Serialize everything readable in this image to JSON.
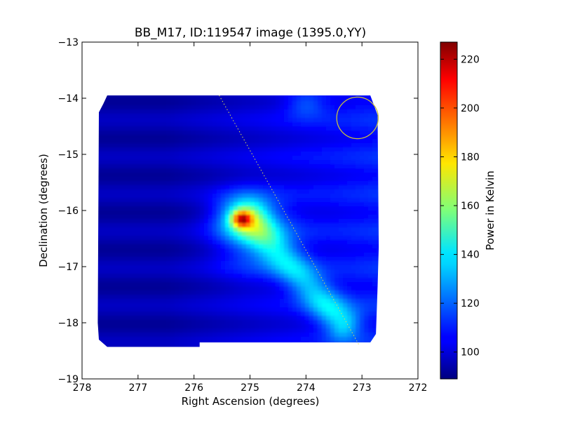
{
  "chart_data": {
    "type": "heatmap",
    "title": "BB_M17, ID:119547 image (1395.0,YY)",
    "xlabel": "Right Ascension (degrees)",
    "ylabel": "Declination (degrees)",
    "xlim": [
      278,
      272
    ],
    "ylim": [
      -19,
      -13
    ],
    "x_ticks": [
      278,
      277,
      276,
      275,
      274,
      273,
      272
    ],
    "y_ticks": [
      -19,
      -18,
      -17,
      -16,
      -15,
      -14,
      -13
    ],
    "x_tick_labels": [
      "278",
      "277",
      "276",
      "275",
      "274",
      "273",
      "272"
    ],
    "y_tick_labels": [
      "−19",
      "−18",
      "−17",
      "−16",
      "−15",
      "−14",
      "−13"
    ],
    "colorbar": {
      "label": "Power in Kelvin",
      "range": [
        89,
        227
      ],
      "ticks": [
        100,
        120,
        140,
        160,
        180,
        200,
        220
      ],
      "colormap": "jet"
    },
    "background_level": 95,
    "coverage_polygon": [
      [
        277.55,
        -13.95
      ],
      [
        272.85,
        -13.95
      ],
      [
        272.72,
        -14.3
      ],
      [
        272.7,
        -16.65
      ],
      [
        272.72,
        -17.35
      ],
      [
        272.75,
        -18.2
      ],
      [
        272.85,
        -18.35
      ],
      [
        275.9,
        -18.35
      ],
      [
        275.9,
        -18.43
      ],
      [
        277.55,
        -18.43
      ],
      [
        277.7,
        -18.3
      ],
      [
        277.72,
        -18.0
      ],
      [
        277.7,
        -14.25
      ],
      [
        277.62,
        -14.1
      ]
    ],
    "sources": [
      {
        "ra": 275.15,
        "dec": -16.15,
        "peak": 227,
        "sigma_ra": 0.12,
        "sigma_dec": 0.1
      },
      {
        "ra": 275.1,
        "dec": -16.1,
        "peak": 175,
        "sigma_ra": 0.35,
        "sigma_dec": 0.27
      },
      {
        "ra": 274.9,
        "dec": -16.5,
        "peak": 140,
        "sigma_ra": 0.5,
        "sigma_dec": 0.45
      }
    ],
    "diffuse_band": {
      "ra_start": 275.0,
      "dec_start": -16.2,
      "ra_end": 273.35,
      "dec_end": -18.0,
      "level": 128
    },
    "annotation_line": {
      "points": [
        [
          275.55,
          -13.95
        ],
        [
          273.05,
          -18.4
        ]
      ],
      "color": "#dddd55",
      "style": "dotted"
    },
    "annotation_circle": {
      "ra": 273.08,
      "dec": -14.35,
      "radius_deg": 0.37,
      "color": "#c8c040"
    }
  }
}
